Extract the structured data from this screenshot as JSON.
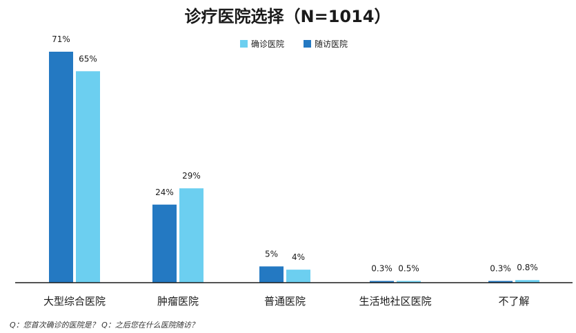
{
  "chart_data": {
    "type": "bar",
    "title": "诊疗医院选择（N=1014）",
    "categories": [
      "大型综合医院",
      "肿瘤医院",
      "普通医院",
      "生活地社区医院",
      "不了解"
    ],
    "series": [
      {
        "name": "随访医院",
        "color": "#2479c2",
        "values": [
          71,
          24,
          5,
          0.3,
          0.3
        ],
        "labels": [
          "71%",
          "24%",
          "5%",
          "0.3%",
          "0.3%"
        ]
      },
      {
        "name": "确诊医院",
        "color": "#6ccff0",
        "values": [
          65,
          29,
          4,
          0.5,
          0.8
        ],
        "labels": [
          "65%",
          "29%",
          "4%",
          "0.5%",
          "0.8%"
        ]
      }
    ],
    "legend": {
      "placement": "top-center",
      "order": [
        "确诊医院",
        "随访医院"
      ]
    },
    "ylim": [
      0,
      71
    ],
    "grid": false
  },
  "footnote": "Q：您首次确诊的医院是？ Q：之后您在什么医院随访？"
}
